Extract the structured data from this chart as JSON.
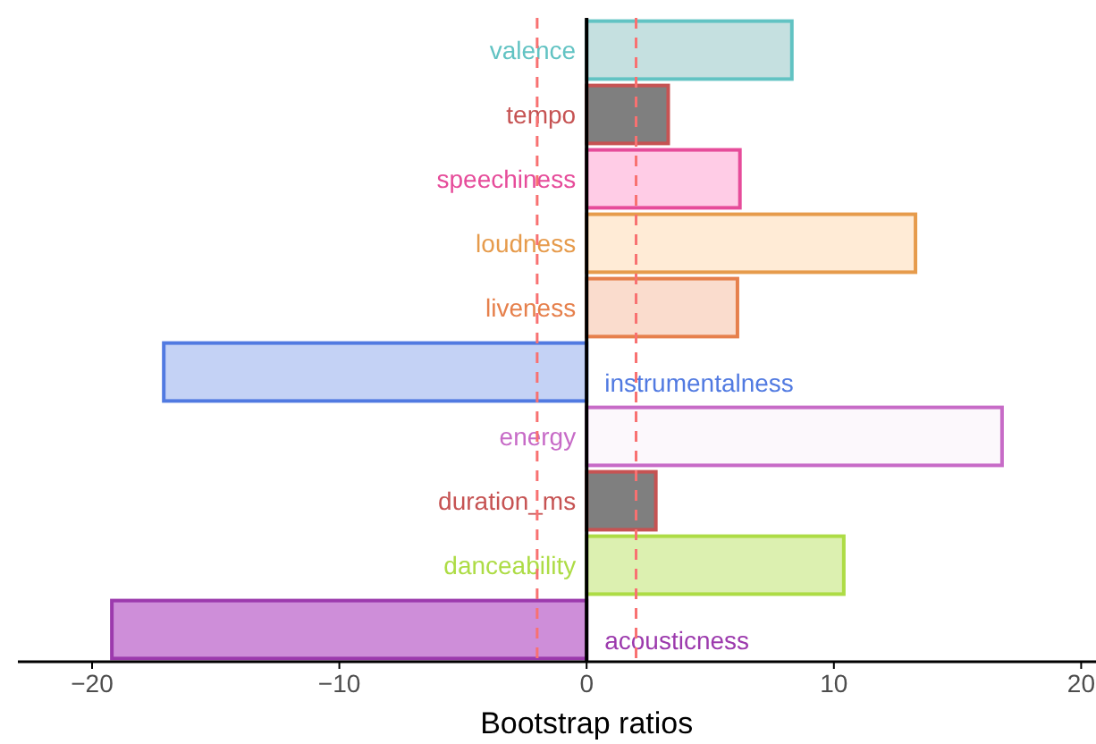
{
  "chart_data": {
    "type": "bar",
    "orientation": "horizontal",
    "xlabel": "Bootstrap ratios",
    "categories": [
      "valence",
      "tempo",
      "speechiness",
      "loudness",
      "liveness",
      "instrumentalness",
      "energy",
      "duration_ms",
      "danceability",
      "acousticness"
    ],
    "values": [
      8.3,
      3.3,
      6.2,
      13.3,
      6.1,
      -17.1,
      16.8,
      2.8,
      10.4,
      -19.2
    ],
    "colors": [
      "#c5e0e0",
      "#7f7f7f",
      "#ffcce6",
      "#ffebd6",
      "#fadccd",
      "#c4d2f5",
      "#fcf8fc",
      "#7f7f7f",
      "#dcf0b0",
      "#ce8ed9"
    ],
    "xlim": [
      -23,
      20.6
    ],
    "xticks": [
      -20,
      -10,
      0,
      10,
      20
    ],
    "ref_lines": [
      {
        "axis": "x",
        "value": -2,
        "color": "#f87171",
        "line_style": "dashed"
      },
      {
        "axis": "x",
        "value": 2,
        "color": "#f87171",
        "line_style": "dashed"
      }
    ],
    "grid": false
  }
}
